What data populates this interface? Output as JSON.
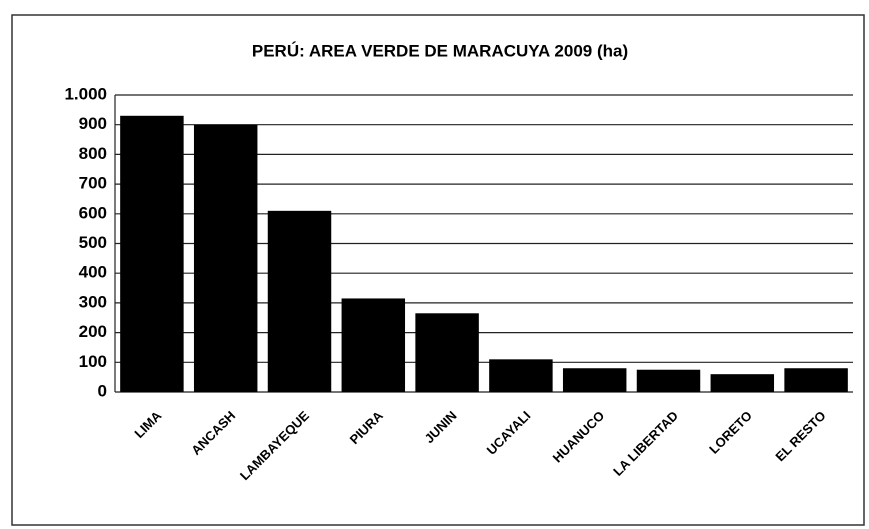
{
  "chart_data": {
    "type": "bar",
    "title": "PERÚ: AREA VERDE DE MARACUYA 2009 (ha)",
    "categories": [
      "LIMA",
      "ANCASH",
      "LAMBAYEQUE",
      "PIURA",
      "JUNIN",
      "UCAYALI",
      "HUANUCO",
      "LA LIBERTAD",
      "LORETO",
      "EL RESTO"
    ],
    "values": [
      930,
      900,
      610,
      315,
      265,
      110,
      80,
      75,
      60,
      80
    ],
    "color": "#000000",
    "ylim": [
      0,
      1000
    ],
    "yticks": [
      0,
      100,
      200,
      300,
      400,
      500,
      600,
      700,
      800,
      900,
      {
        "value": 1000,
        "label": "1.000"
      }
    ],
    "grid": true
  }
}
